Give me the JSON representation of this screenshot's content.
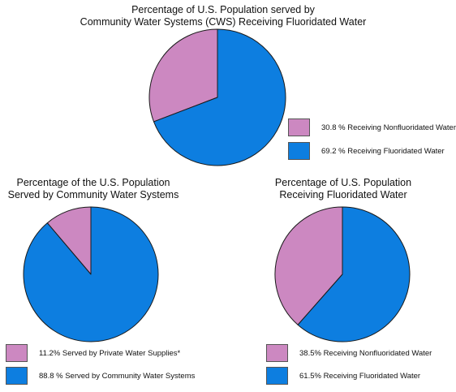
{
  "colors": {
    "pink": "#cc88c1",
    "blue": "#0d7ee0",
    "stroke": "#1a1a1a"
  },
  "chart_data": [
    {
      "type": "pie",
      "title": [
        "Percentage of U.S. Population served by",
        "Community Water Systems (CWS) Receiving Fluoridated Water"
      ],
      "slices": [
        {
          "label": "30.8 % Receiving Nonfluoridated Water",
          "value": 30.8,
          "color": "#cc88c1"
        },
        {
          "label": "69.2 % Receiving Fluoridated Water",
          "value": 69.2,
          "color": "#0d7ee0"
        }
      ]
    },
    {
      "type": "pie",
      "title": [
        "Percentage of the U.S. Population",
        "Served by Community Water Systems"
      ],
      "slices": [
        {
          "label": "11.2% Served by Private Water Supplies*",
          "value": 11.2,
          "color": "#cc88c1"
        },
        {
          "label": "88.8 % Served by Community Water Systems",
          "value": 88.8,
          "color": "#0d7ee0"
        }
      ]
    },
    {
      "type": "pie",
      "title": [
        "Percentage of U.S. Population",
        "Receiving Fluoridated Water"
      ],
      "slices": [
        {
          "label": "38.5% Receiving Nonfluoridated Water",
          "value": 38.5,
          "color": "#cc88c1"
        },
        {
          "label": "61.5% Receiving Fluoridated Water",
          "value": 61.5,
          "color": "#0d7ee0"
        }
      ]
    }
  ]
}
